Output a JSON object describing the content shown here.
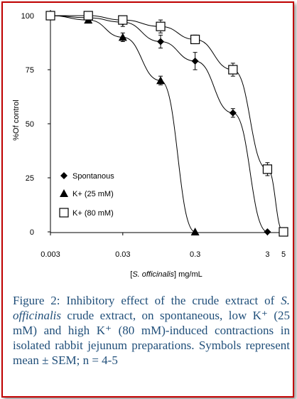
{
  "chart_data": {
    "type": "line",
    "xlabel_prefix": "[",
    "xlabel_italic": "S. officinalis",
    "xlabel_suffix": "] mg/mL",
    "ylabel": "%Of control",
    "xscale": "log",
    "ylim": [
      0,
      100
    ],
    "xlim": [
      0.003,
      5
    ],
    "x_ticks": [
      0.003,
      0.03,
      0.3,
      3,
      5
    ],
    "x_tick_labels": [
      "0.003",
      "0.03",
      "0.3",
      "3",
      "5"
    ],
    "y_ticks": [
      0,
      25,
      50,
      75,
      100
    ],
    "y_tick_labels": [
      "0",
      "25",
      "50",
      "75",
      "100"
    ],
    "legend_position": "left",
    "series": [
      {
        "name": "Spontanous",
        "marker": "diamond",
        "x": [
          0.003,
          0.01,
          0.03,
          0.1,
          0.3,
          1,
          3
        ],
        "y": [
          100,
          99,
          97,
          88,
          79,
          55,
          0
        ],
        "err": [
          0,
          0,
          2,
          3,
          4,
          2,
          0
        ]
      },
      {
        "name": "K+ (25 mM)",
        "marker": "triangle",
        "x": [
          0.003,
          0.01,
          0.03,
          0.1,
          0.3
        ],
        "y": [
          100,
          98,
          90,
          70,
          0
        ],
        "err": [
          0,
          0,
          2,
          2,
          0
        ]
      },
      {
        "name": "K+ (80 mM)",
        "marker": "square",
        "x": [
          0.003,
          0.01,
          0.03,
          0.1,
          0.3,
          1,
          3,
          5
        ],
        "y": [
          100,
          100,
          98,
          95,
          89,
          75,
          29,
          0
        ],
        "err": [
          0,
          0,
          1,
          3,
          2,
          3,
          3,
          0
        ]
      }
    ]
  },
  "caption": {
    "part1": "Figure 2: Inhibitory effect of the crude extract of ",
    "italic": "S. officinalis",
    "part2": " crude extract, on spontaneous, low K⁺ (25 mM) and high K⁺ (80 mM)-induced contractions in isolated rabbit jejunum preparations. Symbols represent mean ± SEM; n = 4-5"
  },
  "colors": {
    "border": "#c00000",
    "caption_text": "#1f4e79"
  }
}
